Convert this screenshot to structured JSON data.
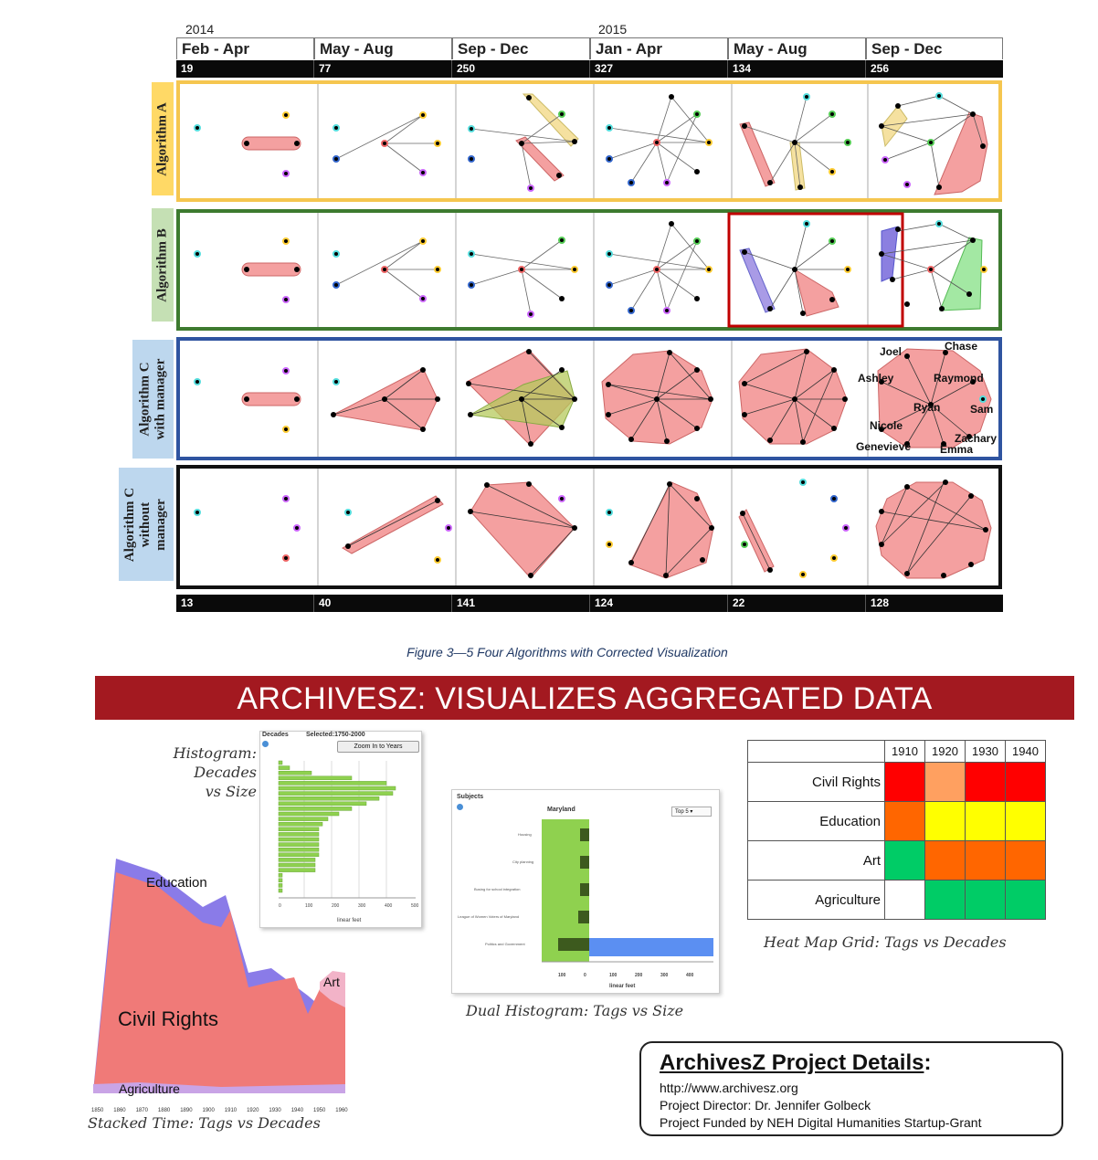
{
  "figure": {
    "years": [
      "2014",
      "2015"
    ],
    "periods": [
      "Feb - Apr",
      "May - Aug",
      "Sep - Dec",
      "Jan - Apr",
      "May - Aug",
      "Sep - Dec"
    ],
    "top_counts": [
      "19",
      "77",
      "250",
      "327",
      "134",
      "256"
    ],
    "bottom_counts": [
      "13",
      "40",
      "141",
      "124",
      "22",
      "128"
    ],
    "rows": [
      {
        "label": "Algorithm A",
        "color": "#f5c64f"
      },
      {
        "label": "Algorithm B",
        "color": "#3d7a2f"
      },
      {
        "label": "Algorithm C\nwith manager",
        "color": "#2f54a0"
      },
      {
        "label": "Algorithm C\nwithout\nmanager",
        "color": "#111111"
      }
    ],
    "row_label_colors": [
      "#ffd966",
      "#c5e0b4",
      "#bdd7ee",
      "#bdd7ee"
    ],
    "names": [
      "Joel",
      "Chase",
      "Ashley",
      "Raymond",
      "Ryan",
      "Sam",
      "Nicole",
      "Zachary",
      "Genevieve",
      "Emma"
    ],
    "caption": "Figure 3—5 Four Algorithms with Corrected Visualization"
  },
  "poster": {
    "banner": "ARCHIVESZ: VISUALIZES AGGREGATED DATA",
    "histogram": {
      "caption": "Histogram:\nDecades\nvs Size",
      "panel_title": "Decades",
      "selected": "Selected:1750-2000",
      "zoom_button": "Zoom In to Years",
      "x_ticks": [
        "0",
        "100",
        "200",
        "300",
        "400",
        "500"
      ],
      "x_label": "linear feet"
    },
    "stacked": {
      "caption": "Stacked Time: Tags vs Decades",
      "labels": {
        "education": "Education",
        "civil_rights": "Civil Rights",
        "art": "Art",
        "agriculture": "Agriculture"
      },
      "x_ticks": [
        "1850",
        "1860",
        "1870",
        "1880",
        "1890",
        "1900",
        "1910",
        "1920",
        "1930",
        "1940",
        "1950",
        "1960"
      ]
    },
    "dual": {
      "caption": "Dual Histogram: Tags vs Size",
      "panel_title": "Subjects",
      "left_title": "Maryland",
      "dropdown": "Top 5",
      "x_ticks": [
        "100",
        "0",
        "100",
        "200",
        "300",
        "400"
      ],
      "x_label": "linear feet"
    },
    "heatmap": {
      "caption": "Heat Map Grid: Tags vs Decades",
      "decades": [
        "1910",
        "1920",
        "1930",
        "1940"
      ],
      "rows": [
        {
          "tag": "Civil Rights",
          "colors": [
            "#ff0000",
            "#ffa060",
            "#ff0000",
            "#ff0000"
          ]
        },
        {
          "tag": "Education",
          "colors": [
            "#ff6600",
            "#ffff00",
            "#ffff00",
            "#ffff00"
          ]
        },
        {
          "tag": "Art",
          "colors": [
            "#00cc66",
            "#ff6600",
            "#ff6600",
            "#ff6600"
          ]
        },
        {
          "tag": "Agriculture",
          "colors": [
            "#ffffff",
            "#00cc66",
            "#00cc66",
            "#00cc66"
          ]
        }
      ]
    },
    "details": {
      "title": "ArchivesZ Project Details",
      "title_suffix": ":",
      "lines": [
        "http://www.archivesz.org",
        "Project Director: Dr. Jennifer Golbeck",
        "Project Funded by NEH Digital Humanities Startup-Grant"
      ]
    }
  }
}
